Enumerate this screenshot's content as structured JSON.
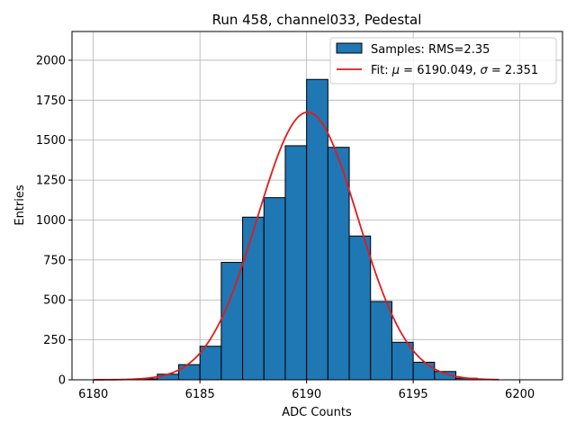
{
  "chart_data": {
    "type": "bar",
    "title": "Run 458, channel033, Pedestal",
    "xlabel": "ADC Counts",
    "ylabel": "Entries",
    "xlim": [
      6179,
      6202
    ],
    "ylim": [
      0,
      2180
    ],
    "xticks": [
      6180,
      6185,
      6190,
      6195,
      6200
    ],
    "yticks": [
      0,
      250,
      500,
      750,
      1000,
      1250,
      1500,
      1750,
      2000
    ],
    "grid": true,
    "legend_position": "top-right",
    "colors": {
      "bar_fill": "#1f77b4",
      "bar_edge": "#000000",
      "fit_line": "#e41a1c",
      "grid": "#b0b0b0"
    },
    "bins": {
      "edges": [
        6180,
        6181,
        6182,
        6183,
        6184,
        6185,
        6186,
        6187,
        6188,
        6189,
        6190,
        6191,
        6192,
        6193,
        6194,
        6195,
        6196,
        6197,
        6198,
        6199,
        6200,
        6201
      ],
      "counts": [
        0,
        0,
        6,
        35,
        95,
        210,
        735,
        1018,
        1140,
        1465,
        1880,
        1455,
        900,
        490,
        235,
        110,
        52,
        10,
        2,
        0,
        0
      ]
    },
    "fit": {
      "mu": 6190.049,
      "sigma": 2.351,
      "amplitude": 1675,
      "x_range": [
        6180,
        6199
      ]
    },
    "legend": [
      {
        "label": "Samples: RMS=2.35",
        "kind": "patch"
      },
      {
        "label_prefix": "Fit: ",
        "mu_symbol": "μ",
        "mu_text": " = 6190.049, ",
        "sigma_symbol": "σ",
        "sigma_text": " = 2.351",
        "kind": "line"
      }
    ]
  }
}
